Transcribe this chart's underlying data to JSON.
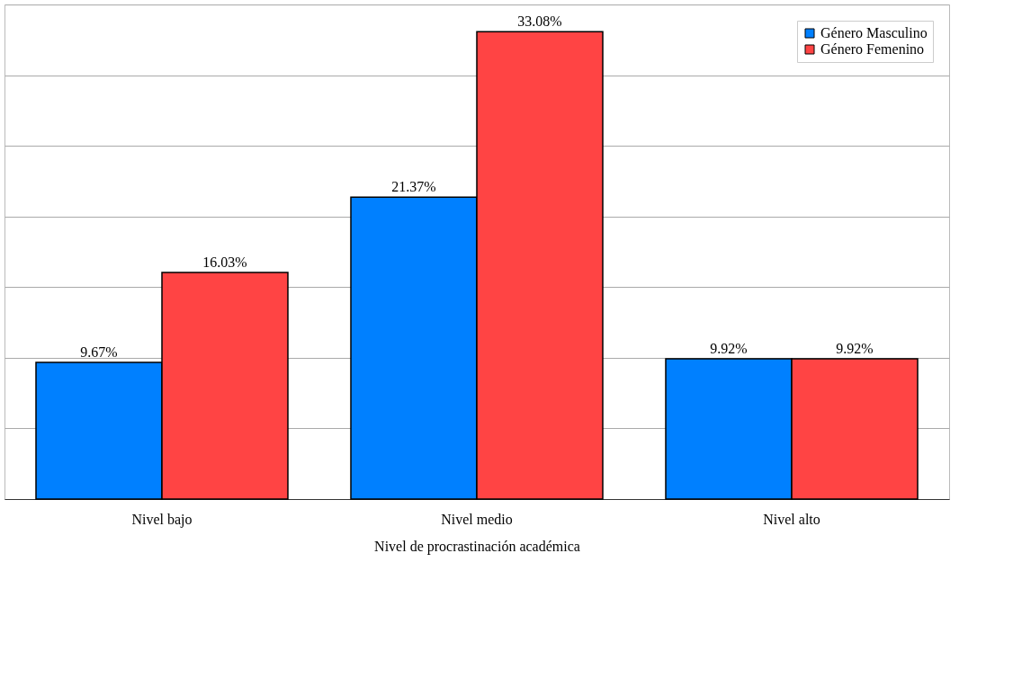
{
  "chart_data": {
    "type": "bar",
    "xlabel": "Nivel de procrastinación académica",
    "categories": [
      "Nivel bajo",
      "Nivel medio",
      "Nivel alto"
    ],
    "series": [
      {
        "name": "Género Masculino",
        "color": "#0080ff",
        "values": [
          9.67,
          21.37,
          9.92
        ],
        "value_labels": [
          "9.67%",
          "21.37%",
          "9.92%"
        ]
      },
      {
        "name": "Género Femenino",
        "color": "#ff4444",
        "values": [
          16.03,
          33.08,
          9.92
        ],
        "value_labels": [
          "16.03%",
          "33.08%",
          "9.92%"
        ]
      }
    ],
    "ylim": [
      0,
      35
    ],
    "yticks": [
      {
        "value": 0,
        "label": null
      },
      {
        "value": 5,
        "label": null
      },
      {
        "value": 10,
        "label": null
      },
      {
        "value": 15,
        "label": null
      },
      {
        "value": 20,
        "label": null
      },
      {
        "value": 25,
        "label": null
      },
      {
        "value": 30,
        "label": null
      },
      {
        "value": 35,
        "label": null
      }
    ],
    "grid": "y",
    "legend": "top right",
    "tick_labels": "x"
  }
}
